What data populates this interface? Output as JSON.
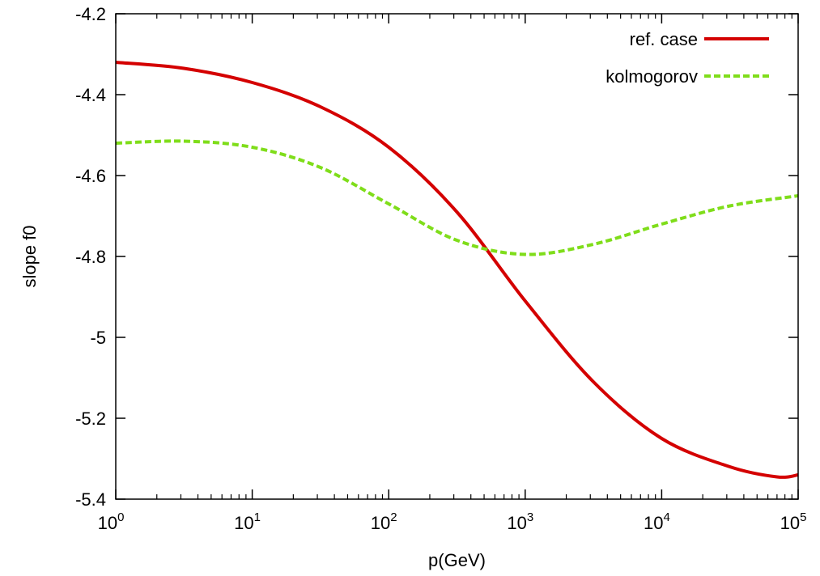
{
  "chart_data": {
    "type": "line",
    "xlabel": "p(GeV)",
    "ylabel": "slope f0",
    "x_scale": "log",
    "xlim": [
      1,
      100000
    ],
    "ylim": [
      -5.4,
      -4.2
    ],
    "x_ticks": [
      {
        "value": 1,
        "base": "10",
        "exp": "0"
      },
      {
        "value": 10,
        "base": "10",
        "exp": "1"
      },
      {
        "value": 100,
        "base": "10",
        "exp": "2"
      },
      {
        "value": 1000,
        "base": "10",
        "exp": "3"
      },
      {
        "value": 10000,
        "base": "10",
        "exp": "4"
      },
      {
        "value": 100000,
        "base": "10",
        "exp": "5"
      }
    ],
    "y_ticks": [
      {
        "value": -4.2,
        "label": "-4.2"
      },
      {
        "value": -4.4,
        "label": "-4.4"
      },
      {
        "value": -4.6,
        "label": "-4.6"
      },
      {
        "value": -4.8,
        "label": "-4.8"
      },
      {
        "value": -5.0,
        "label": "-5"
      },
      {
        "value": -5.2,
        "label": "-5.2"
      },
      {
        "value": -5.4,
        "label": "-5.4"
      }
    ],
    "grid": false,
    "legend_position": "top-right",
    "series": [
      {
        "name": "ref. case",
        "color": "#d40000",
        "dash": "solid",
        "x": [
          1,
          3.16,
          10,
          31.6,
          100,
          316,
          1000,
          3162,
          10000,
          31623,
          70000,
          100000
        ],
        "y": [
          -4.32,
          -4.335,
          -4.37,
          -4.43,
          -4.53,
          -4.69,
          -4.91,
          -5.11,
          -5.25,
          -5.32,
          -5.345,
          -5.34
        ]
      },
      {
        "name": "kolmogorov",
        "color": "#7fdd1a",
        "dash": "dashed",
        "x": [
          1,
          3.16,
          10,
          31.6,
          100,
          316,
          1000,
          3162,
          10000,
          31623,
          100000
        ],
        "y": [
          -4.52,
          -4.515,
          -4.53,
          -4.58,
          -4.67,
          -4.76,
          -4.795,
          -4.77,
          -4.72,
          -4.675,
          -4.65
        ]
      }
    ]
  }
}
